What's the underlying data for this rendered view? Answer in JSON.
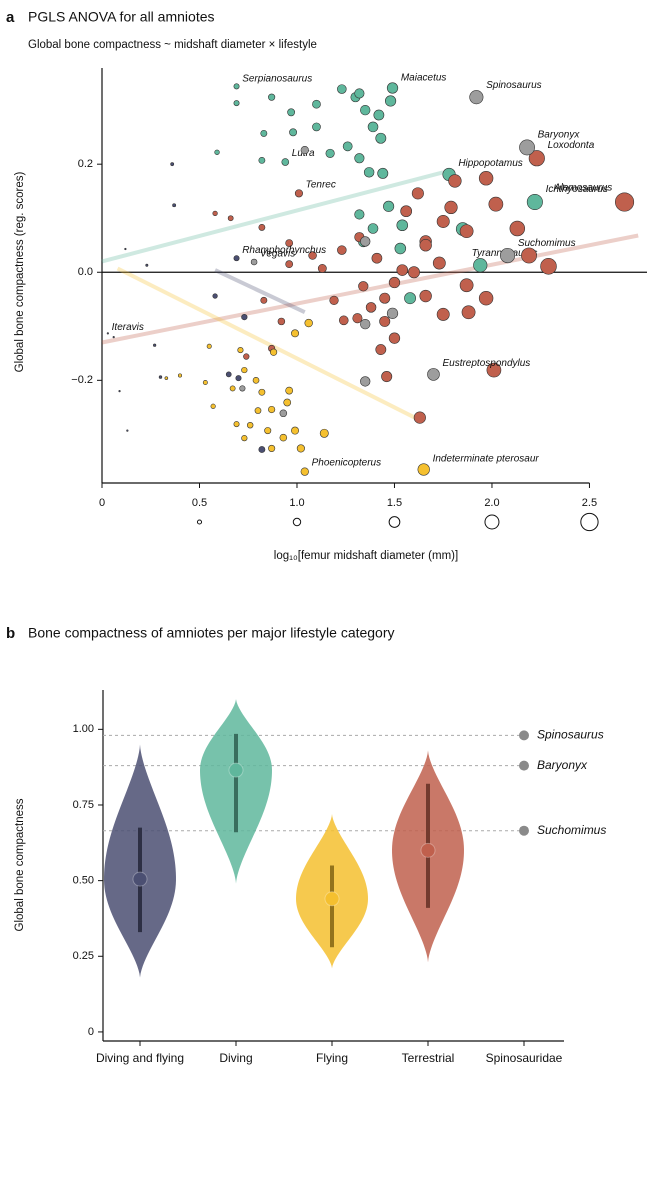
{
  "chart_data": [
    {
      "type": "scatter",
      "panel": "a",
      "title": "PGLS  ANOVA for all amniotes",
      "subtitle": "Global bone compactness ~ midshaft diameter × lifestyle",
      "xlabel": "log₁₀[femur midshaft diameter (mm)]",
      "ylabel": "Global bone compactness (reg. scores)",
      "xlim": [
        0,
        2.79
      ],
      "ylim": [
        -0.39,
        0.378
      ],
      "xticks": [
        0,
        0.5,
        {
          "value": 1,
          "label": "1.0"
        },
        1.5,
        {
          "value": 2,
          "label": "2.0"
        },
        2.5
      ],
      "yticks": [
        {
          "value": -0.2,
          "label": "−0.2"
        },
        {
          "value": 0,
          "label": "0.0"
        },
        {
          "value": 0.2,
          "label": "0.2"
        }
      ],
      "zero_line": true,
      "size_legend": true,
      "series": [
        {
          "color": "#5fb79c",
          "x": [
            0.69,
            1.49,
            0.94,
            1.78,
            2.22,
            0.69,
            0.87,
            0.97,
            1.1,
            1.23,
            1.3,
            1.32,
            1.48,
            1.35,
            1.42,
            1.39,
            1.43,
            1.26,
            1.32,
            1.17,
            1.44,
            1.37,
            0.98,
            0.83,
            0.82,
            1.47,
            1.39,
            1.32,
            1.53,
            1.58,
            1.85,
            1.94,
            0.59,
            1.1,
            1.54,
            1.34
          ],
          "values": [
            0.344,
            0.341,
            0.204,
            0.181,
            0.13,
            0.313,
            0.324,
            0.296,
            0.311,
            0.339,
            0.324,
            0.331,
            0.317,
            0.3,
            0.291,
            0.269,
            0.248,
            0.233,
            0.211,
            0.22,
            0.183,
            0.185,
            0.259,
            0.257,
            0.207,
            0.122,
            0.081,
            0.107,
            0.044,
            -0.048,
            0.08,
            0.013,
            0.222,
            0.269,
            0.087,
            0.056
          ],
          "point_labels": [
            "Serpianosaurus",
            "Maiacetus",
            "Lutra",
            "Hippopotamus",
            "Ichthyosaurus",
            null,
            null,
            null,
            null,
            null,
            null,
            null,
            null,
            null,
            null,
            null,
            null,
            null,
            null,
            null,
            null,
            null,
            null,
            null,
            null,
            null,
            null,
            null,
            null,
            null,
            null,
            null,
            null,
            null,
            null,
            null
          ],
          "fit": {
            "x": [
              0,
              1.75
            ],
            "y": [
              0.02,
              0.185
            ]
          }
        },
        {
          "color": "#c0604d",
          "x": [
            1.01,
            2.23,
            2.68,
            2.29,
            1.97,
            2.02,
            1.81,
            1.79,
            1.87,
            1.75,
            1.66,
            1.56,
            1.62,
            1.66,
            1.73,
            2.13,
            2.19,
            1.87,
            1.97,
            1.88,
            1.75,
            1.66,
            1.6,
            1.5,
            1.45,
            1.45,
            1.38,
            1.31,
            1.24,
            1.5,
            1.43,
            1.46,
            2.01,
            1.63,
            1.54,
            1.23,
            1.13,
            1.08,
            0.96,
            0.82,
            0.66,
            0.58,
            0.96,
            1.41,
            1.34,
            1.19,
            0.92,
            0.83,
            0.74,
            0.87,
            1.32
          ],
          "values": [
            0.146,
            0.211,
            0.13,
            0.011,
            0.174,
            0.126,
            0.169,
            0.12,
            0.076,
            0.094,
            0.057,
            0.113,
            0.146,
            0.05,
            0.017,
            0.081,
            0.031,
            -0.024,
            -0.048,
            -0.074,
            -0.078,
            -0.044,
            0.0,
            -0.019,
            -0.048,
            -0.091,
            -0.065,
            -0.085,
            -0.089,
            -0.122,
            -0.143,
            -0.193,
            -0.181,
            -0.269,
            0.004,
            0.041,
            0.007,
            0.031,
            0.015,
            0.083,
            0.1,
            0.109,
            0.054,
            0.026,
            -0.026,
            -0.052,
            -0.091,
            -0.052,
            -0.156,
            -0.141,
            0.065
          ],
          "point_labels": [
            "Tenrec",
            "Loxodonta",
            "Alamosaurus",
            "Tyrannosaurus",
            null,
            null,
            null,
            null,
            null,
            null,
            null,
            null,
            null,
            null,
            null,
            null,
            null,
            null,
            null,
            null,
            null,
            null,
            null,
            null,
            null,
            null,
            null,
            null,
            null,
            null,
            null,
            null,
            null,
            null,
            null,
            null,
            null,
            null,
            null,
            null,
            null,
            null,
            null,
            null,
            null,
            null,
            null,
            null,
            null,
            null,
            null
          ],
          "fit": {
            "x": [
              0,
              2.75
            ],
            "y": [
              -0.13,
              0.068
            ]
          }
        },
        {
          "color": "#f5c02f",
          "x": [
            1.04,
            1.65,
            1.06,
            0.99,
            0.71,
            0.73,
            0.79,
            0.82,
            0.8,
            0.87,
            0.95,
            0.96,
            0.76,
            0.85,
            0.93,
            0.99,
            1.02,
            1.14,
            0.87,
            0.67,
            0.57,
            0.53,
            0.55,
            0.4,
            0.33,
            0.73,
            0.69,
            0.88
          ],
          "values": [
            -0.369,
            -0.365,
            -0.094,
            -0.113,
            -0.144,
            -0.181,
            -0.2,
            -0.222,
            -0.256,
            -0.254,
            -0.241,
            -0.219,
            -0.283,
            -0.293,
            -0.306,
            -0.293,
            -0.326,
            -0.298,
            -0.326,
            -0.215,
            -0.248,
            -0.204,
            -0.137,
            -0.191,
            -0.196,
            -0.307,
            -0.281,
            -0.148
          ],
          "point_labels": [
            "Phoenicopterus",
            "Indeterminate pterosaur",
            null,
            null,
            null,
            null,
            null,
            null,
            null,
            null,
            null,
            null,
            null,
            null,
            null,
            null,
            null,
            null,
            null,
            null,
            null,
            null,
            null,
            null,
            null,
            null,
            null,
            null
          ],
          "fit": {
            "x": [
              0.08,
              1.61
            ],
            "y": [
              0.007,
              -0.27
            ]
          }
        },
        {
          "color": "#4b4f72",
          "x": [
            0.69,
            0.03,
            0.82,
            0.73,
            0.7,
            0.65,
            0.58,
            0.3,
            0.27,
            0.23,
            0.12,
            0.13,
            0.36,
            0.37,
            0.06,
            0.09
          ],
          "values": [
            0.026,
            -0.113,
            -0.328,
            -0.083,
            -0.196,
            -0.189,
            -0.044,
            -0.194,
            -0.135,
            0.013,
            0.043,
            -0.293,
            0.2,
            0.124,
            -0.12,
            -0.22
          ],
          "point_labels": [
            "Rhamphorhynchus",
            "Iteravis",
            null,
            null,
            null,
            null,
            null,
            null,
            null,
            null,
            null,
            null,
            null,
            null,
            null,
            null
          ],
          "fit": {
            "x": [
              0.58,
              1.04
            ],
            "y": [
              0.004,
              -0.074
            ]
          }
        },
        {
          "color": "#9d9d9d",
          "x": [
            1.92,
            2.18,
            2.08,
            1.7,
            0.78,
            1.04,
            1.35,
            1.35,
            1.49,
            1.35,
            0.93,
            0.72
          ],
          "values": [
            0.324,
            0.231,
            0.031,
            -0.189,
            0.019,
            0.226,
            0.057,
            -0.096,
            -0.076,
            -0.202,
            -0.261,
            -0.215
          ],
          "point_labels": [
            "Spinosaurus",
            "Baryonyx",
            "Suchomimus",
            "Eustreptospondylus",
            "Vegavis",
            null,
            null,
            null,
            null,
            null,
            null,
            null
          ]
        }
      ]
    },
    {
      "type": "violin",
      "panel": "b",
      "title": "Bone compactness of amniotes per major lifestyle category",
      "ylabel": "Global bone compactness",
      "categories": [
        "Diving and flying",
        "Diving",
        "Flying",
        "Terrestrial",
        "Spinosauridae"
      ],
      "colors": [
        "#4b4f72",
        "#5fb79c",
        "#f5c02f",
        "#c0604d",
        "#8a8a8a"
      ],
      "median": [
        0.505,
        0.865,
        0.44,
        0.6,
        null
      ],
      "q1": [
        0.33,
        0.66,
        0.28,
        0.41,
        null
      ],
      "q3": [
        0.675,
        0.985,
        0.55,
        0.82,
        null
      ],
      "min": [
        0.18,
        0.49,
        0.21,
        0.23,
        null
      ],
      "max": [
        0.95,
        1.1,
        0.72,
        0.93,
        null
      ],
      "points": {
        "labels": [
          "Spinosaurus",
          "Baryonyx",
          "Suchomimus"
        ],
        "values": [
          0.98,
          0.88,
          0.665
        ]
      },
      "ylim": [
        -0.03,
        1.13
      ],
      "yticks": [
        0,
        0.25,
        {
          "value": 0.5,
          "label": "0.50"
        },
        0.75,
        {
          "value": 1,
          "label": "1.00"
        }
      ]
    }
  ]
}
